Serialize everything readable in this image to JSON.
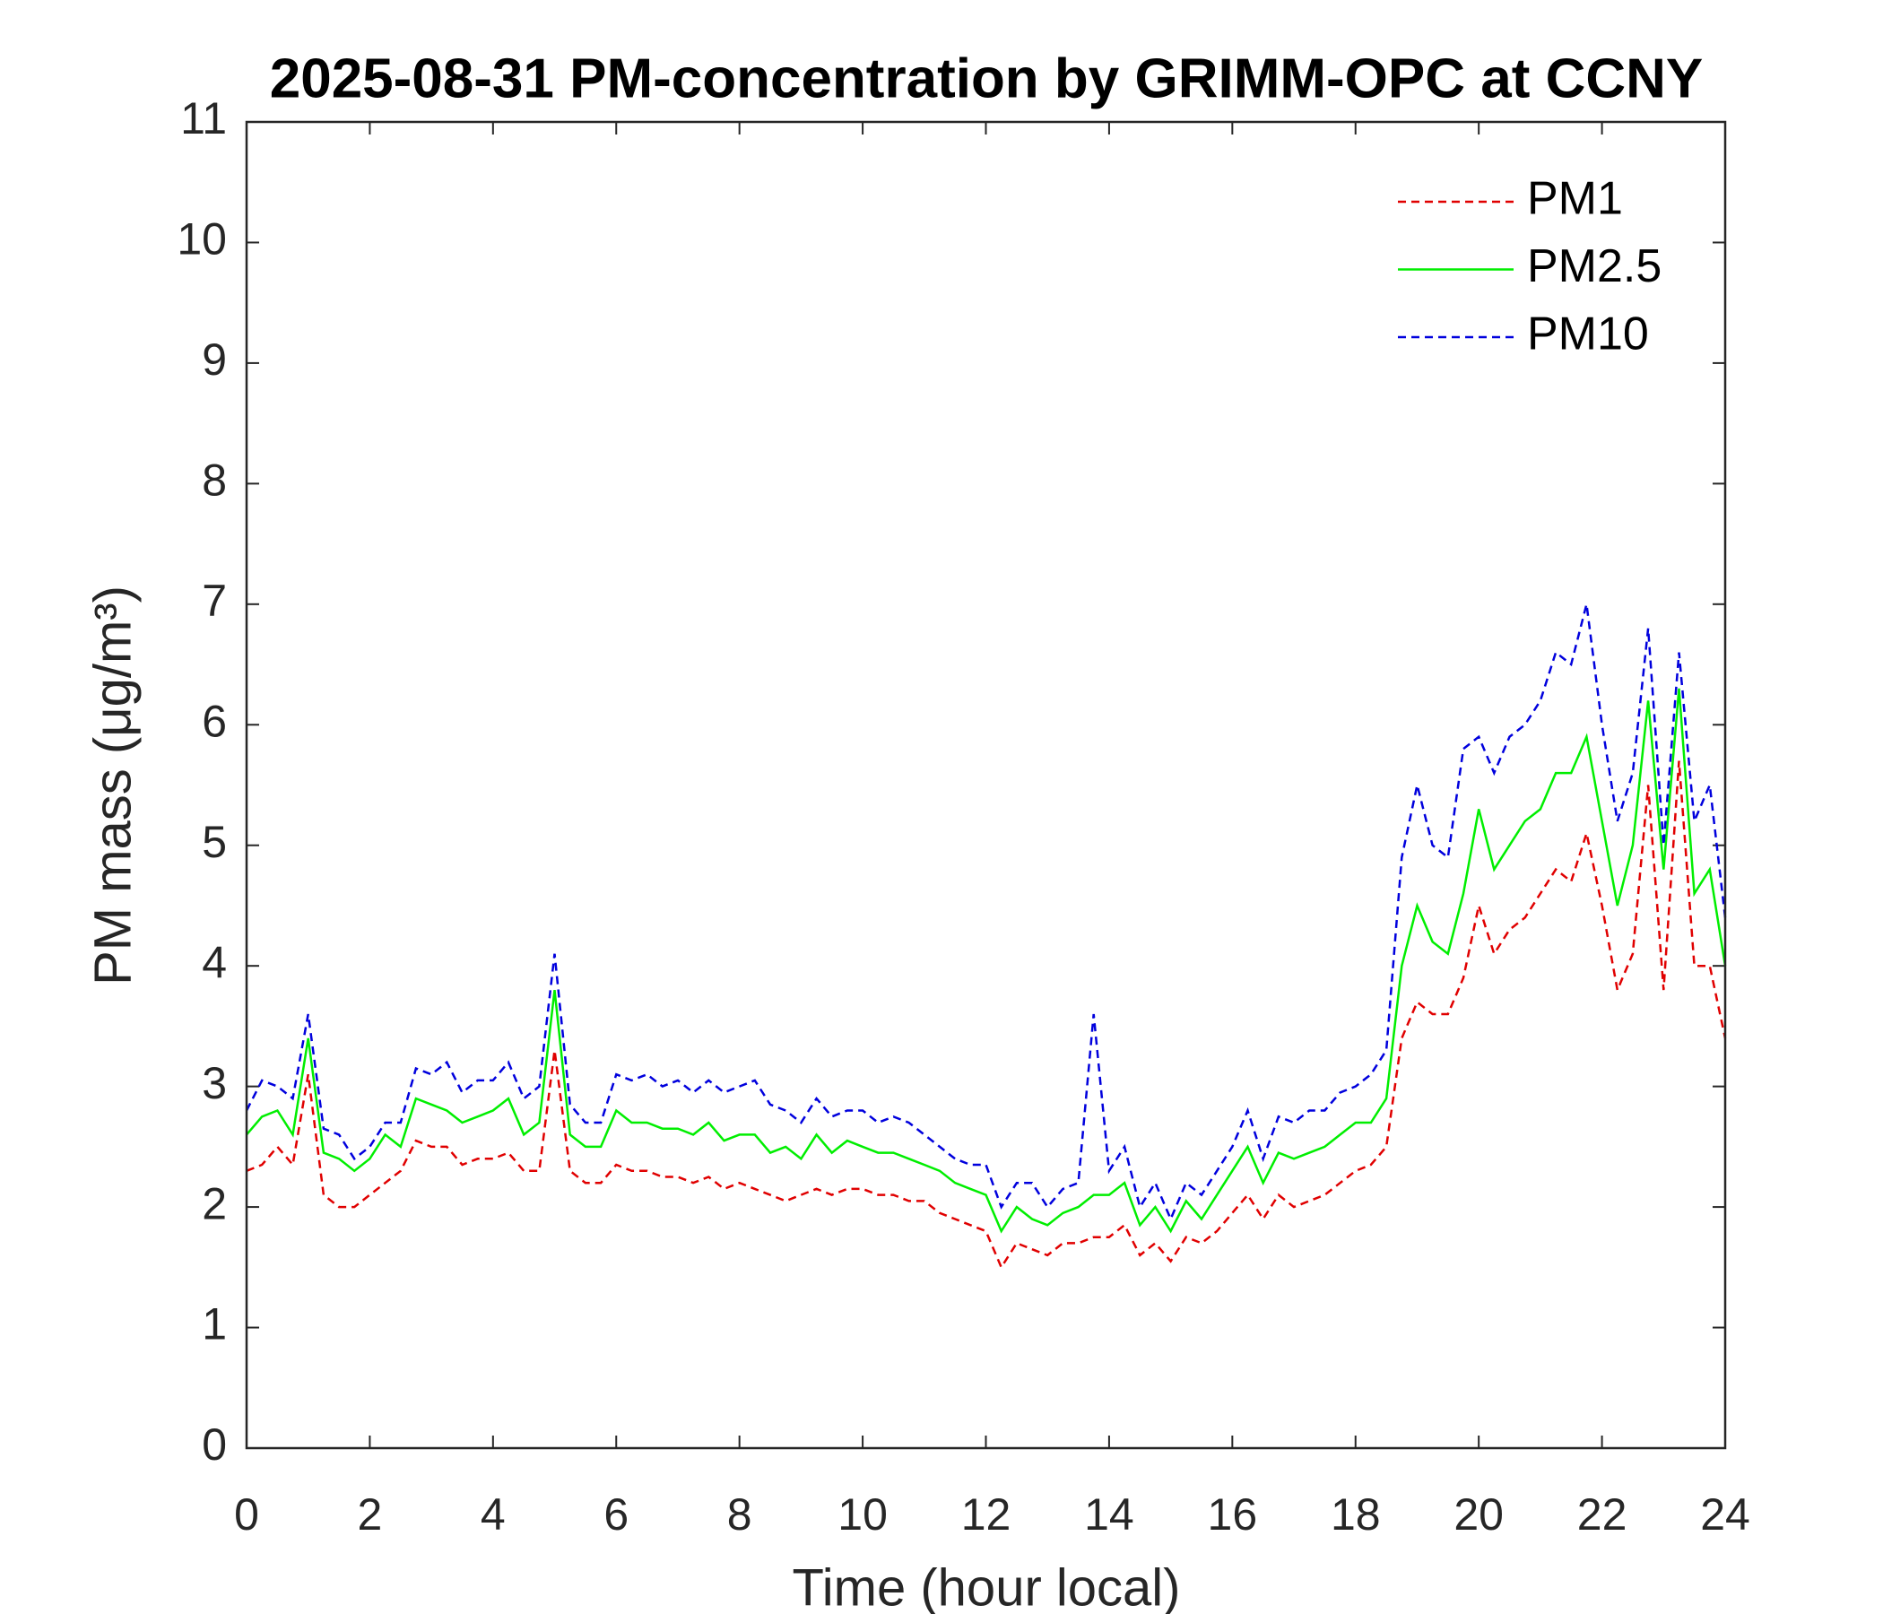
{
  "chart_data": {
    "type": "line",
    "title": "2025-08-31 PM-concentration by GRIMM-OPC at CCNY",
    "xlabel": "Time (hour local)",
    "ylabel": "PM mass (μg/m³)",
    "x": [
      0,
      0.25,
      0.5,
      0.75,
      1,
      1.25,
      1.5,
      1.75,
      2,
      2.25,
      2.5,
      2.75,
      3,
      3.25,
      3.5,
      3.75,
      4,
      4.25,
      4.5,
      4.75,
      5,
      5.25,
      5.5,
      5.75,
      6,
      6.25,
      6.5,
      6.75,
      7,
      7.25,
      7.5,
      7.75,
      8,
      8.25,
      8.5,
      8.75,
      9,
      9.25,
      9.5,
      9.75,
      10,
      10.25,
      10.5,
      10.75,
      11,
      11.25,
      11.5,
      11.75,
      12,
      12.25,
      12.5,
      12.75,
      13,
      13.25,
      13.5,
      13.75,
      14,
      14.25,
      14.5,
      14.75,
      15,
      15.25,
      15.5,
      15.75,
      16,
      16.25,
      16.5,
      16.75,
      17,
      17.25,
      17.5,
      17.75,
      18,
      18.25,
      18.5,
      18.75,
      19,
      19.25,
      19.5,
      19.75,
      20,
      20.25,
      20.5,
      20.75,
      21,
      21.25,
      21.5,
      21.75,
      22,
      22.25,
      22.5,
      22.75,
      23,
      23.25,
      23.5,
      23.75,
      24
    ],
    "series": [
      {
        "name": "PM1",
        "color": "#e00000",
        "linestyle": "dashed",
        "values": [
          2.3,
          2.35,
          2.5,
          2.35,
          3.1,
          2.1,
          2.0,
          2.0,
          2.1,
          2.2,
          2.3,
          2.55,
          2.5,
          2.5,
          2.35,
          2.4,
          2.4,
          2.45,
          2.3,
          2.3,
          3.3,
          2.3,
          2.2,
          2.2,
          2.35,
          2.3,
          2.3,
          2.25,
          2.25,
          2.2,
          2.25,
          2.15,
          2.2,
          2.15,
          2.1,
          2.05,
          2.1,
          2.15,
          2.1,
          2.15,
          2.15,
          2.1,
          2.1,
          2.05,
          2.05,
          1.95,
          1.9,
          1.85,
          1.8,
          1.5,
          1.7,
          1.65,
          1.6,
          1.7,
          1.7,
          1.75,
          1.75,
          1.85,
          1.6,
          1.7,
          1.55,
          1.75,
          1.7,
          1.8,
          1.95,
          2.1,
          1.9,
          2.1,
          2.0,
          2.05,
          2.1,
          2.2,
          2.3,
          2.35,
          2.5,
          3.4,
          3.7,
          3.6,
          3.6,
          3.9,
          4.5,
          4.1,
          4.3,
          4.4,
          4.6,
          4.8,
          4.7,
          5.1,
          4.5,
          3.8,
          4.1,
          5.5,
          3.8,
          5.7,
          4.0,
          4.0,
          3.4
        ]
      },
      {
        "name": "PM2.5",
        "color": "#00ee00",
        "linestyle": "solid",
        "values": [
          2.6,
          2.75,
          2.8,
          2.6,
          3.4,
          2.45,
          2.4,
          2.3,
          2.4,
          2.6,
          2.5,
          2.9,
          2.85,
          2.8,
          2.7,
          2.75,
          2.8,
          2.9,
          2.6,
          2.7,
          3.8,
          2.6,
          2.5,
          2.5,
          2.8,
          2.7,
          2.7,
          2.65,
          2.65,
          2.6,
          2.7,
          2.55,
          2.6,
          2.6,
          2.45,
          2.5,
          2.4,
          2.6,
          2.45,
          2.55,
          2.5,
          2.45,
          2.45,
          2.4,
          2.35,
          2.3,
          2.2,
          2.15,
          2.1,
          1.8,
          2.0,
          1.9,
          1.85,
          1.95,
          2.0,
          2.1,
          2.1,
          2.2,
          1.85,
          2.0,
          1.8,
          2.05,
          1.9,
          2.1,
          2.3,
          2.5,
          2.2,
          2.45,
          2.4,
          2.45,
          2.5,
          2.6,
          2.7,
          2.7,
          2.9,
          4.0,
          4.5,
          4.2,
          4.1,
          4.6,
          5.3,
          4.8,
          5.0,
          5.2,
          5.3,
          5.6,
          5.6,
          5.9,
          5.2,
          4.5,
          5.0,
          6.2,
          4.8,
          6.3,
          4.6,
          4.8,
          4.0
        ]
      },
      {
        "name": "PM10",
        "color": "#0000dd",
        "linestyle": "dashed",
        "values": [
          2.8,
          3.05,
          3.0,
          2.9,
          3.6,
          2.65,
          2.6,
          2.4,
          2.5,
          2.7,
          2.7,
          3.15,
          3.1,
          3.2,
          2.95,
          3.05,
          3.05,
          3.2,
          2.9,
          3.0,
          4.1,
          2.85,
          2.7,
          2.7,
          3.1,
          3.05,
          3.1,
          3.0,
          3.05,
          2.95,
          3.05,
          2.95,
          3.0,
          3.05,
          2.85,
          2.8,
          2.7,
          2.9,
          2.75,
          2.8,
          2.8,
          2.7,
          2.75,
          2.7,
          2.6,
          2.5,
          2.4,
          2.35,
          2.35,
          2.0,
          2.2,
          2.2,
          2.0,
          2.15,
          2.2,
          3.6,
          2.3,
          2.5,
          2.0,
          2.2,
          1.9,
          2.2,
          2.1,
          2.3,
          2.5,
          2.8,
          2.4,
          2.75,
          2.7,
          2.8,
          2.8,
          2.95,
          3.0,
          3.1,
          3.3,
          4.9,
          5.5,
          5.0,
          4.9,
          5.8,
          5.9,
          5.6,
          5.9,
          6.0,
          6.2,
          6.6,
          6.5,
          7.0,
          6.0,
          5.2,
          5.6,
          6.8,
          5.0,
          6.6,
          5.2,
          5.5,
          4.4
        ]
      }
    ],
    "xlim": [
      0,
      24
    ],
    "xticks": [
      0,
      2,
      4,
      6,
      8,
      10,
      12,
      14,
      16,
      18,
      20,
      22,
      24
    ],
    "ylim": [
      0,
      11
    ],
    "yticks": [
      0,
      1,
      2,
      3,
      4,
      5,
      6,
      7,
      8,
      9,
      10,
      11
    ],
    "grid": false,
    "legend": "upper right"
  }
}
